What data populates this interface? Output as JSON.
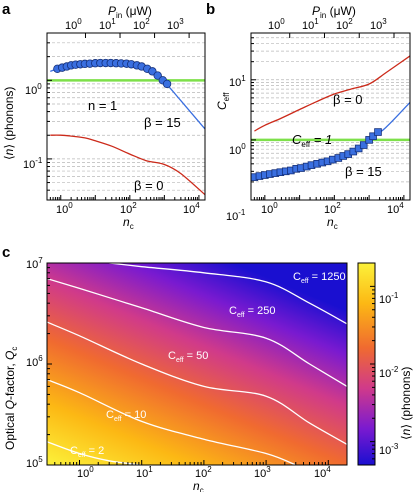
{
  "chart_data": [
    {
      "panel": "a",
      "type": "line",
      "xlabel": "n_c",
      "ylabel": "⟨n⟩ (phonons)",
      "top_xlabel": "P_in (µW)",
      "x_scale": "log",
      "y_scale": "log",
      "xlim": [
        0.4,
        15000
      ],
      "ylim": [
        0.03,
        4
      ],
      "x_ticks": [
        "10^0",
        "10^2",
        "10^4"
      ],
      "y_ticks": [
        "10^-1",
        "10^0"
      ],
      "top_ticks": [
        "10^0",
        "10^1",
        "10^2",
        "10^3"
      ],
      "top_tick_nc": [
        5.2,
        52,
        520,
        5200
      ],
      "grid": "dashed horizontal",
      "series": [
        {
          "name": "β = 15",
          "color": "#3a6fe0",
          "x": [
            0.5,
            1,
            2,
            5,
            10,
            30,
            100,
            300,
            1000,
            3000,
            15000
          ],
          "y": [
            1.3,
            1.45,
            1.55,
            1.62,
            1.65,
            1.65,
            1.6,
            1.4,
            0.95,
            0.55,
            0.24
          ]
        },
        {
          "name": "β = 0",
          "color": "#cc2a1a",
          "x": [
            0.5,
            1,
            2,
            5,
            10,
            30,
            100,
            300,
            1000,
            3000,
            15000
          ],
          "y": [
            0.2,
            0.2,
            0.195,
            0.185,
            0.17,
            0.145,
            0.115,
            0.095,
            0.085,
            0.065,
            0.035
          ]
        },
        {
          "name": "β = 15 (measured)",
          "color": "#3a6fe0",
          "type": "scatter",
          "x": [
            0.8,
            1.1,
            1.5,
            2,
            2.7,
            3.7,
            5,
            7,
            10,
            14,
            20,
            28,
            40,
            56,
            80,
            110,
            160,
            220,
            320,
            450,
            640,
            900,
            1200
          ],
          "y": [
            1.4,
            1.45,
            1.5,
            1.55,
            1.58,
            1.6,
            1.62,
            1.63,
            1.65,
            1.66,
            1.66,
            1.66,
            1.65,
            1.64,
            1.63,
            1.6,
            1.55,
            1.5,
            1.4,
            1.3,
            1.15,
            1.0,
            0.9
          ]
        }
      ],
      "reference_lines": [
        {
          "label": "n = 1",
          "y": 1,
          "color": "#7ee04a"
        }
      ],
      "annotations": [
        "n = 1",
        "β = 15",
        "β = 0"
      ]
    },
    {
      "panel": "b",
      "type": "line",
      "xlabel": "n_c",
      "ylabel": "C_eff",
      "top_xlabel": "P_in (µW)",
      "x_scale": "log",
      "y_scale": "log",
      "xlim": [
        0.4,
        15000
      ],
      "ylim": [
        0.1,
        60
      ],
      "x_ticks": [
        "10^0",
        "10^2",
        "10^4"
      ],
      "y_ticks": [
        "10^-1",
        "10^0",
        "10^1"
      ],
      "top_ticks": [
        "10^0",
        "10^1",
        "10^2",
        "10^3"
      ],
      "top_tick_nc": [
        5.2,
        52,
        520,
        5200
      ],
      "grid": "dashed horizontal",
      "series": [
        {
          "name": "β = 0",
          "color": "#cc2a1a",
          "x": [
            0.5,
            1,
            3,
            10,
            30,
            100,
            300,
            1000,
            3000,
            15000
          ],
          "y": [
            1.4,
            1.75,
            2.3,
            3.2,
            4.3,
            5.8,
            7,
            8.5,
            13,
            25
          ]
        },
        {
          "name": "β = 15",
          "color": "#3a6fe0",
          "x": [
            0.5,
            1,
            3,
            10,
            30,
            100,
            300,
            1000,
            3000,
            15000
          ],
          "y": [
            0.24,
            0.26,
            0.3,
            0.36,
            0.42,
            0.5,
            0.62,
            1.0,
            1.6,
            4.2
          ]
        },
        {
          "name": "β = 15 (measured)",
          "color": "#3a6fe0",
          "type": "scatter",
          "x": [
            0.5,
            0.7,
            1,
            1.4,
            2,
            2.8,
            4,
            5.6,
            8,
            11,
            16,
            22,
            32,
            45,
            64,
            90,
            130,
            180,
            250,
            350,
            500,
            700,
            1000,
            1300,
            1800
          ],
          "y": [
            0.24,
            0.25,
            0.26,
            0.27,
            0.28,
            0.29,
            0.3,
            0.31,
            0.33,
            0.34,
            0.36,
            0.38,
            0.4,
            0.42,
            0.44,
            0.47,
            0.5,
            0.54,
            0.58,
            0.64,
            0.72,
            0.82,
            1.0,
            1.15,
            1.35
          ]
        }
      ],
      "reference_lines": [
        {
          "label": "C_eff = 1",
          "y": 1,
          "color": "#7ee04a"
        }
      ],
      "annotations": [
        "C_eff = 1",
        "β = 0",
        "β = 15"
      ]
    },
    {
      "panel": "c",
      "type": "heatmap",
      "xlabel": "n_c",
      "ylabel": "Optical Q-factor, Q_c",
      "colorbar_label": "⟨n⟩ (phonons)",
      "x_scale": "log",
      "y_scale": "log",
      "xlim": [
        0.3,
        20000
      ],
      "ylim": [
        100000,
        10000000
      ],
      "x_ticks": [
        "10^0",
        "10^1",
        "10^2",
        "10^3",
        "10^4"
      ],
      "y_ticks": [
        "10^5",
        "10^6",
        "10^7"
      ],
      "colorbar_ticks": [
        "10^-1",
        "10^-2",
        "10^-3"
      ],
      "colorbar_range": [
        0.0005,
        0.2
      ],
      "colorscale": [
        "#1a0fd0",
        "#7a1ad0",
        "#d03a8a",
        "#f06a30",
        "#fcb814",
        "#fcf23a"
      ],
      "contours": [
        {
          "label": "C_eff = 2",
          "x": [
            0.3,
            1,
            3,
            10
          ],
          "y": [
            170000,
            130000,
            110000,
            100000
          ]
        },
        {
          "label": "C_eff = 10",
          "x": [
            0.3,
            1,
            10,
            100,
            1000,
            3000
          ],
          "y": [
            700000,
            520000,
            270000,
            180000,
            130000,
            100000
          ]
        },
        {
          "label": "C_eff = 50",
          "x": [
            0.3,
            1,
            10,
            100,
            1000,
            5000,
            20000
          ],
          "y": [
            2600000,
            1900000,
            1000000,
            600000,
            480000,
            260000,
            160000
          ]
        },
        {
          "label": "C_eff = 250",
          "x": [
            0.3,
            1,
            10,
            100,
            1000,
            5000,
            20000
          ],
          "y": [
            7000000,
            5600000,
            3600000,
            2300000,
            1800000,
            1000000,
            600000
          ]
        },
        {
          "label": "C_eff = 1250",
          "x": [
            3,
            10,
            100,
            1000,
            5000,
            20000
          ],
          "y": [
            10000000,
            9200000,
            8000000,
            6500000,
            4000000,
            2500000
          ]
        }
      ]
    }
  ],
  "labels": {
    "panel_a": "a",
    "panel_b": "b",
    "panel_c": "c",
    "pin_prefix": "P",
    "pin_sub": "in",
    "pin_unit": " (μW)",
    "nc_main": "n",
    "nc_sub": "c",
    "a_ylabel_pre": "⟨",
    "a_ylabel_n": "n",
    "a_ylabel_post": "⟩ (phonons)",
    "b_ylabel_c": "C",
    "b_ylabel_sub": "eff",
    "c_ylabel_pre": "Optical ",
    "c_ylabel_q": "Q",
    "c_ylabel_mid": "-factor, ",
    "c_ylabel_qc": "Q",
    "c_ylabel_sub": "c",
    "cb_label_pre": "⟨",
    "cb_label_n": "n",
    "cb_label_post": "⟩ (phonons)",
    "ann_a_n1": "n = 1",
    "ann_a_beta15": "β = 15",
    "ann_a_beta0": "β = 0",
    "ann_b_ceff": "C",
    "ann_b_ceff_sub": "eff",
    "ann_b_ceff_val": " = 1",
    "ann_b_beta0": "β = 0",
    "ann_b_beta15": "β = 15",
    "ceff_c": "C",
    "ceff_sub": "eff",
    "c_val_2": " = 2",
    "c_val_10": " = 10",
    "c_val_50": " = 50",
    "c_val_250": " = 250",
    "c_val_1250": " = 1250"
  },
  "ticks": {
    "ten": "10",
    "e0": "0",
    "e1": "1",
    "e2": "2",
    "e3": "3",
    "e4": "4",
    "e5": "5",
    "e6": "6",
    "e7": "7",
    "em1": "-1",
    "em2": "-2",
    "em3": "-3"
  }
}
